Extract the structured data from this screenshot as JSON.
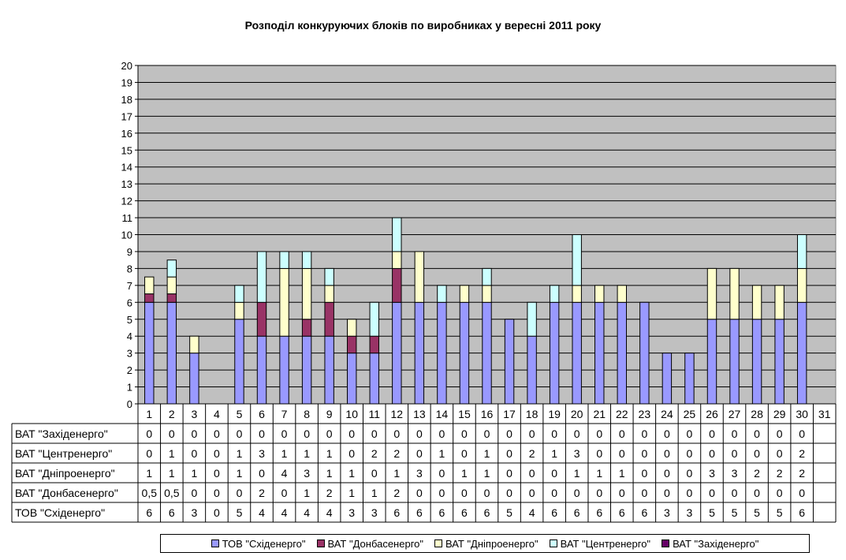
{
  "chart_data": {
    "type": "bar",
    "stacked": true,
    "title": "Розподіл конкуруючих блоків по виробниках у вересні 2011 року",
    "categories": [
      "1",
      "2",
      "3",
      "4",
      "5",
      "6",
      "7",
      "8",
      "9",
      "10",
      "11",
      "12",
      "13",
      "14",
      "15",
      "16",
      "17",
      "18",
      "19",
      "20",
      "21",
      "22",
      "23",
      "24",
      "25",
      "26",
      "27",
      "28",
      "29",
      "30",
      "31"
    ],
    "ylim": [
      0,
      20
    ],
    "yticks": [
      0,
      1,
      2,
      3,
      4,
      5,
      6,
      7,
      8,
      9,
      10,
      11,
      12,
      13,
      14,
      15,
      16,
      17,
      18,
      19,
      20
    ],
    "grid": true,
    "legend_position": "bottom",
    "data_table": true,
    "series": [
      {
        "name": "ТОВ \"Східенерго\"",
        "color": "#9999FF",
        "values": [
          6,
          6,
          3,
          0,
          5,
          4,
          4,
          4,
          4,
          3,
          3,
          6,
          6,
          6,
          6,
          6,
          5,
          4,
          6,
          6,
          6,
          6,
          6,
          3,
          3,
          5,
          5,
          5,
          5,
          6,
          null
        ]
      },
      {
        "name": "ВАТ \"Донбасенерго\"",
        "color": "#993366",
        "values": [
          "0,5",
          "0,5",
          0,
          0,
          0,
          2,
          0,
          1,
          2,
          1,
          1,
          2,
          0,
          0,
          0,
          0,
          0,
          0,
          0,
          0,
          0,
          0,
          0,
          0,
          0,
          0,
          0,
          0,
          0,
          0,
          null
        ]
      },
      {
        "name": "ВАТ \"Дніпроенерго\"",
        "color": "#FFFFCC",
        "values": [
          1,
          1,
          1,
          0,
          1,
          0,
          4,
          3,
          1,
          1,
          0,
          1,
          3,
          0,
          1,
          1,
          0,
          0,
          0,
          1,
          1,
          1,
          0,
          0,
          0,
          3,
          3,
          2,
          2,
          2,
          null
        ]
      },
      {
        "name": "ВАТ \"Центренерго\"",
        "color": "#CCFFFF",
        "values": [
          0,
          1,
          0,
          0,
          1,
          3,
          1,
          1,
          1,
          0,
          2,
          2,
          0,
          1,
          0,
          1,
          0,
          2,
          1,
          3,
          0,
          0,
          0,
          0,
          0,
          0,
          0,
          0,
          0,
          2,
          null
        ]
      },
      {
        "name": "ВАТ \"Західенерго\"",
        "color": "#660066",
        "values": [
          0,
          0,
          0,
          0,
          0,
          0,
          0,
          0,
          0,
          0,
          0,
          0,
          0,
          0,
          0,
          0,
          0,
          0,
          0,
          0,
          0,
          0,
          0,
          0,
          0,
          0,
          0,
          0,
          0,
          0,
          null
        ]
      }
    ]
  }
}
